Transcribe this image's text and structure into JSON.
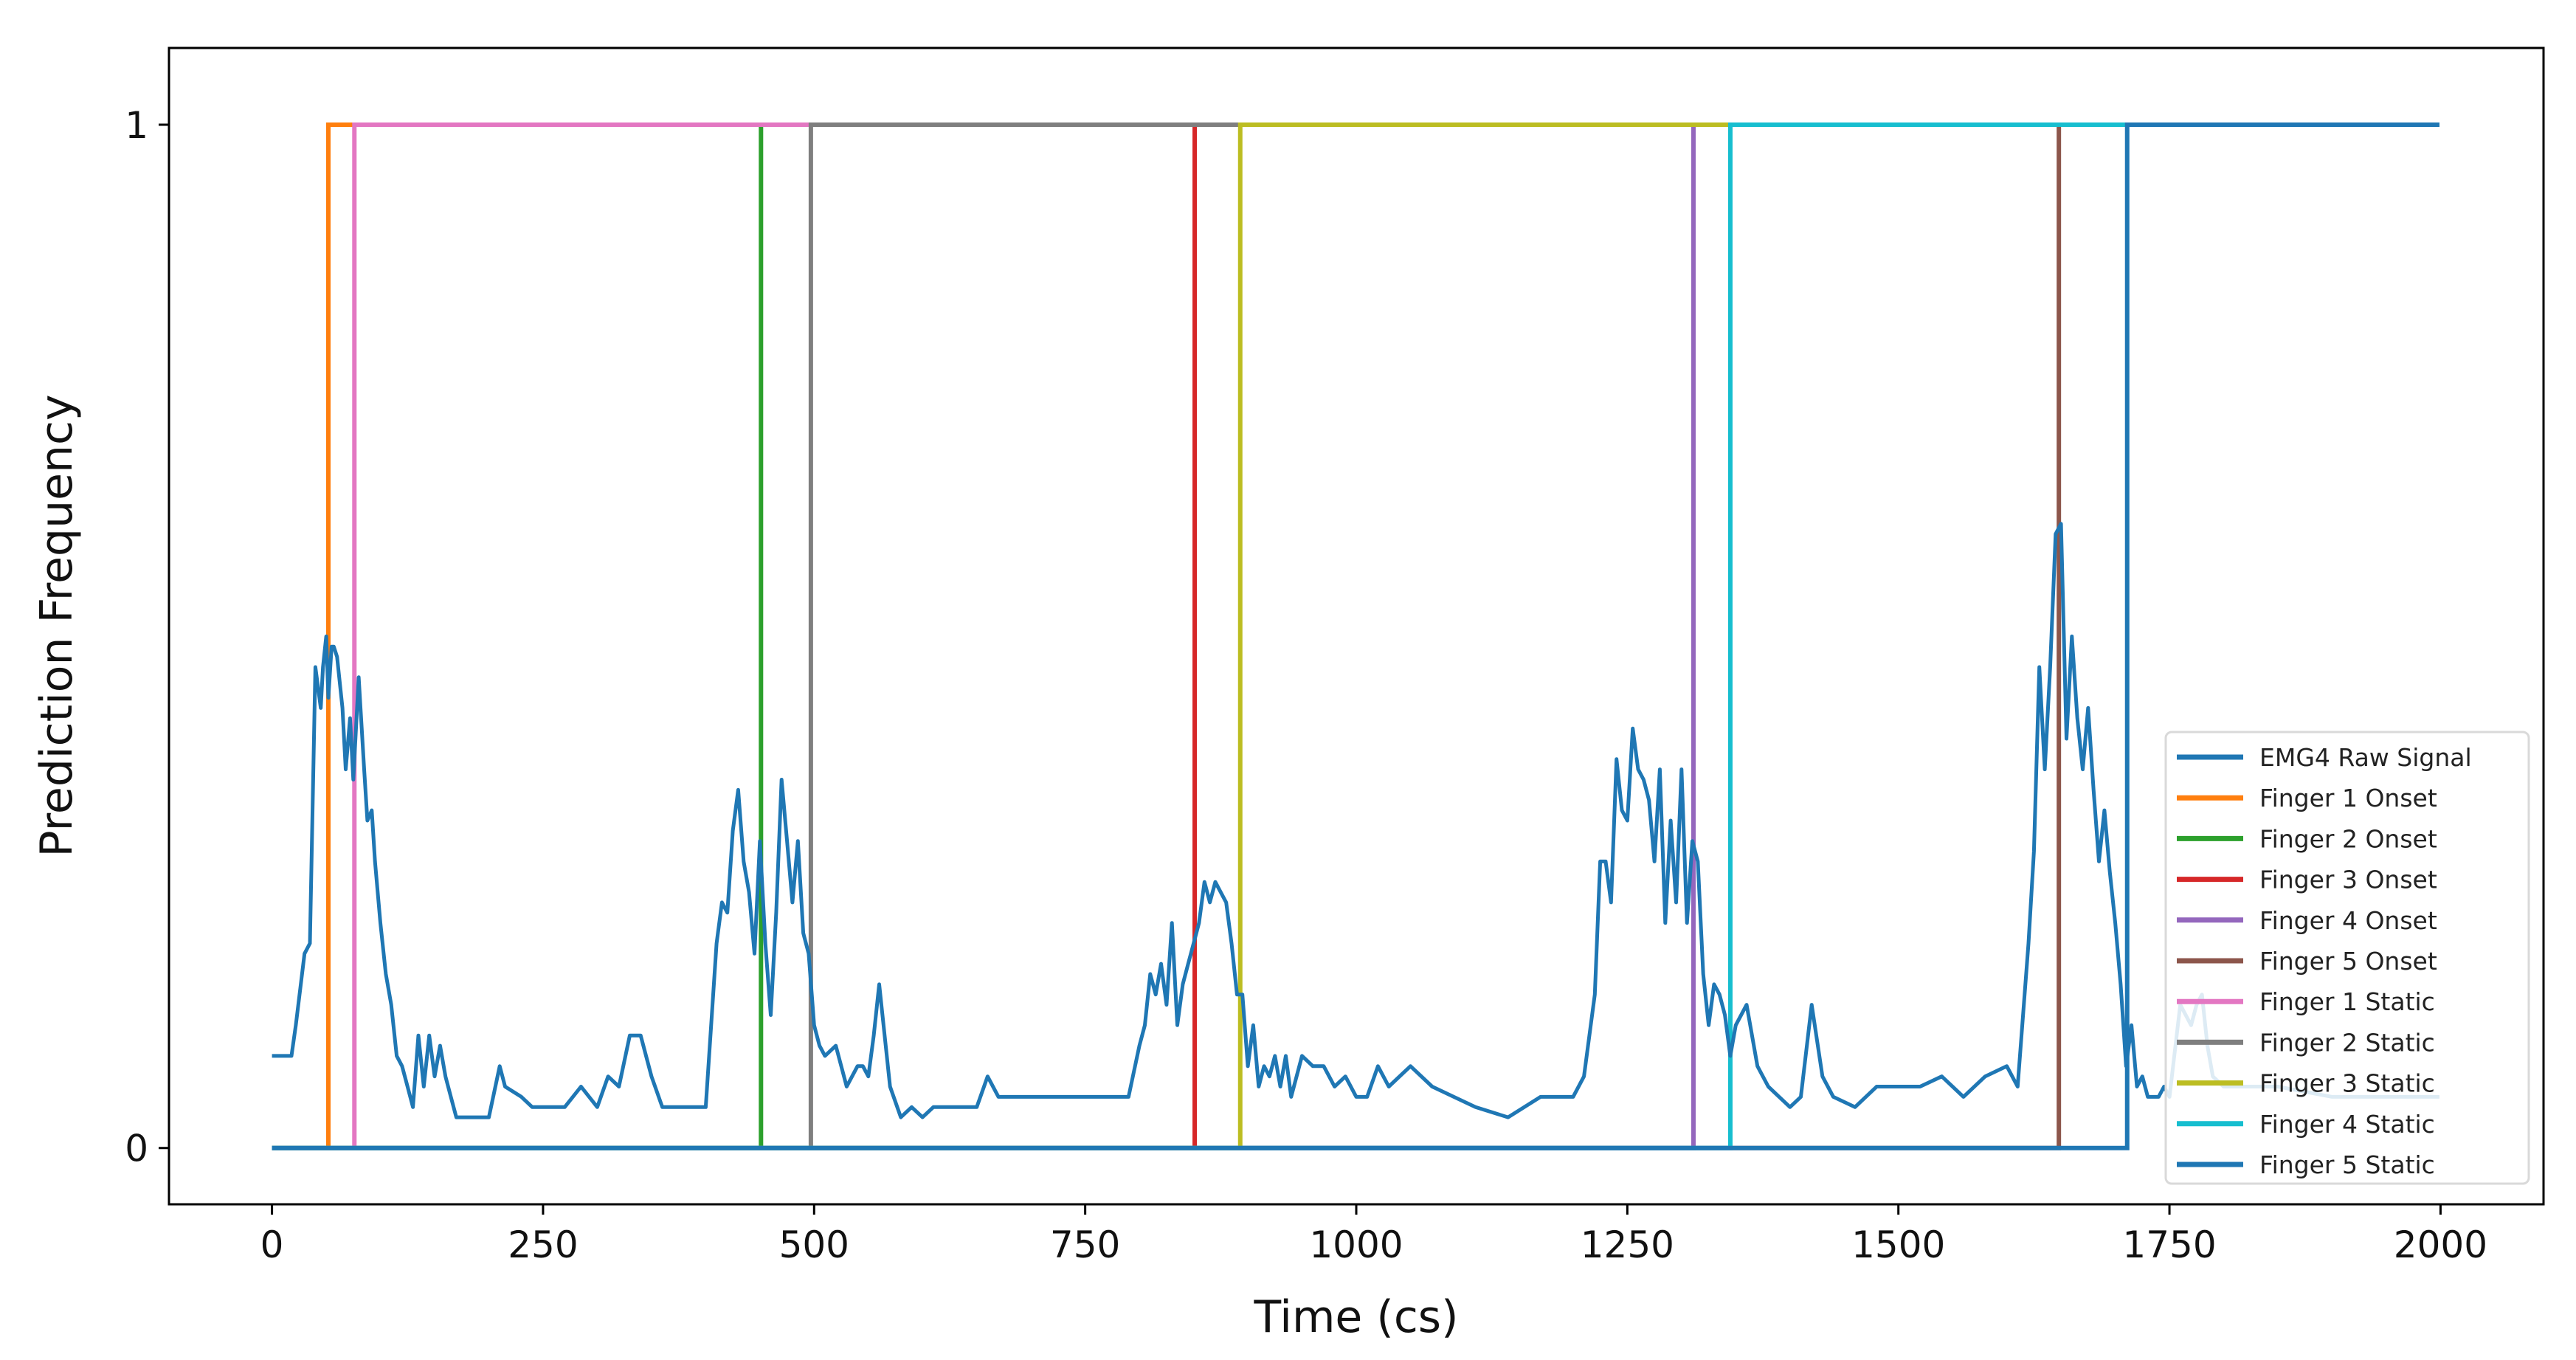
{
  "chart_data": {
    "type": "line",
    "title": "",
    "xlabel": "Time (cs)",
    "ylabel": "Prediction Frequency",
    "xlim": [
      -95,
      2095
    ],
    "ylim": [
      -0.055,
      1.075
    ],
    "xticks": [
      0,
      250,
      500,
      750,
      1000,
      1250,
      1500,
      1750,
      2000
    ],
    "xtick_labels": [
      "0",
      "250",
      "500",
      "750",
      "1000",
      "1250",
      "1500",
      "1750",
      "2000"
    ],
    "yticks": [
      0,
      1
    ],
    "ytick_labels": [
      "0",
      "1"
    ],
    "grid": false,
    "legend_position": "lower-right",
    "colors": {
      "EMG4 Raw Signal": "#1f77b4",
      "Finger 1 Onset": "#ff7f0e",
      "Finger 2 Onset": "#2ca02c",
      "Finger 3 Onset": "#d62728",
      "Finger 4 Onset": "#9467bd",
      "Finger 5 Onset": "#8c564b",
      "Finger 1 Static": "#e377c2",
      "Finger 2 Static": "#7f7f7f",
      "Finger 3 Static": "#bcbd22",
      "Finger 4 Static": "#17becf",
      "Finger 5 Static": "#1f77b4"
    },
    "raw_signal": {
      "name": "EMG4 Raw Signal",
      "x": [
        0,
        18,
        22,
        30,
        35,
        40,
        45,
        47,
        50,
        52,
        55,
        57,
        60,
        62,
        65,
        68,
        72,
        75,
        80,
        85,
        88,
        92,
        95,
        100,
        105,
        110,
        115,
        120,
        125,
        130,
        135,
        140,
        145,
        150,
        155,
        160,
        165,
        170,
        175,
        180,
        190,
        200,
        210,
        215,
        230,
        240,
        250,
        260,
        270,
        285,
        300,
        310,
        320,
        330,
        340,
        350,
        360,
        370,
        380,
        400,
        410,
        415,
        420,
        425,
        430,
        435,
        440,
        445,
        450,
        455,
        460,
        465,
        470,
        475,
        480,
        485,
        490,
        495,
        500,
        505,
        510,
        520,
        530,
        540,
        545,
        550,
        555,
        560,
        570,
        580,
        590,
        600,
        610,
        630,
        640,
        650,
        660,
        670,
        700,
        730,
        760,
        790,
        800,
        805,
        810,
        815,
        820,
        825,
        830,
        835,
        840,
        845,
        850,
        855,
        860,
        865,
        870,
        875,
        880,
        885,
        890,
        895,
        900,
        905,
        910,
        915,
        920,
        925,
        930,
        935,
        940,
        950,
        960,
        970,
        980,
        990,
        1000,
        1010,
        1020,
        1030,
        1050,
        1070,
        1090,
        1110,
        1140,
        1170,
        1200,
        1210,
        1220,
        1225,
        1230,
        1235,
        1240,
        1245,
        1250,
        1255,
        1260,
        1265,
        1270,
        1275,
        1280,
        1285,
        1290,
        1295,
        1300,
        1305,
        1310,
        1315,
        1320,
        1325,
        1330,
        1335,
        1340,
        1345,
        1350,
        1360,
        1370,
        1380,
        1390,
        1400,
        1410,
        1420,
        1430,
        1440,
        1460,
        1480,
        1500,
        1520,
        1540,
        1560,
        1580,
        1600,
        1610,
        1620,
        1625,
        1630,
        1635,
        1640,
        1645,
        1650,
        1655,
        1660,
        1665,
        1670,
        1675,
        1680,
        1685,
        1690,
        1695,
        1700,
        1705,
        1710,
        1715,
        1720,
        1725,
        1730,
        1735,
        1740,
        1745,
        1750,
        1760,
        1770,
        1775,
        1780,
        1785,
        1790,
        1800,
        1850,
        1900,
        1950,
        1999
      ],
      "y": [
        0.09,
        0.09,
        0.12,
        0.19,
        0.2,
        0.47,
        0.43,
        0.47,
        0.5,
        0.44,
        0.49,
        0.49,
        0.48,
        0.46,
        0.43,
        0.37,
        0.42,
        0.36,
        0.46,
        0.37,
        0.32,
        0.33,
        0.28,
        0.22,
        0.17,
        0.14,
        0.09,
        0.08,
        0.06,
        0.04,
        0.11,
        0.06,
        0.11,
        0.07,
        0.1,
        0.07,
        0.05,
        0.03,
        0.03,
        0.03,
        0.03,
        0.03,
        0.08,
        0.06,
        0.05,
        0.04,
        0.04,
        0.04,
        0.04,
        0.06,
        0.04,
        0.07,
        0.06,
        0.11,
        0.11,
        0.07,
        0.04,
        0.04,
        0.04,
        0.04,
        0.2,
        0.24,
        0.23,
        0.31,
        0.35,
        0.28,
        0.25,
        0.19,
        0.3,
        0.2,
        0.13,
        0.23,
        0.36,
        0.3,
        0.24,
        0.3,
        0.21,
        0.19,
        0.12,
        0.1,
        0.09,
        0.1,
        0.06,
        0.08,
        0.08,
        0.07,
        0.11,
        0.16,
        0.06,
        0.03,
        0.04,
        0.03,
        0.04,
        0.04,
        0.04,
        0.04,
        0.07,
        0.05,
        0.05,
        0.05,
        0.05,
        0.05,
        0.1,
        0.12,
        0.17,
        0.15,
        0.18,
        0.14,
        0.22,
        0.12,
        0.16,
        0.18,
        0.2,
        0.22,
        0.26,
        0.24,
        0.26,
        0.25,
        0.24,
        0.2,
        0.15,
        0.15,
        0.08,
        0.12,
        0.06,
        0.08,
        0.07,
        0.09,
        0.06,
        0.09,
        0.05,
        0.09,
        0.08,
        0.08,
        0.06,
        0.07,
        0.05,
        0.05,
        0.08,
        0.06,
        0.08,
        0.06,
        0.05,
        0.04,
        0.03,
        0.05,
        0.05,
        0.07,
        0.15,
        0.28,
        0.28,
        0.24,
        0.38,
        0.33,
        0.32,
        0.41,
        0.37,
        0.36,
        0.34,
        0.28,
        0.37,
        0.22,
        0.32,
        0.24,
        0.37,
        0.22,
        0.3,
        0.28,
        0.17,
        0.12,
        0.16,
        0.15,
        0.13,
        0.09,
        0.12,
        0.14,
        0.08,
        0.06,
        0.05,
        0.04,
        0.05,
        0.14,
        0.07,
        0.05,
        0.04,
        0.06,
        0.06,
        0.06,
        0.07,
        0.05,
        0.07,
        0.08,
        0.06,
        0.2,
        0.29,
        0.47,
        0.37,
        0.47,
        0.6,
        0.61,
        0.4,
        0.5,
        0.42,
        0.37,
        0.43,
        0.35,
        0.28,
        0.33,
        0.27,
        0.22,
        0.16,
        0.08,
        0.12,
        0.06,
        0.07,
        0.05,
        0.05,
        0.05,
        0.06,
        0.05,
        0.14,
        0.12,
        0.14,
        0.15,
        0.1,
        0.07,
        0.06,
        0.06,
        0.05,
        0.05,
        0.05
      ]
    },
    "step_series": [
      {
        "name": "Finger 1 Onset",
        "step_x": 52
      },
      {
        "name": "Finger 2 Onset",
        "step_x": 451
      },
      {
        "name": "Finger 3 Onset",
        "step_x": 851
      },
      {
        "name": "Finger 4 Onset",
        "step_x": 1311
      },
      {
        "name": "Finger 5 Onset",
        "step_x": 1648
      },
      {
        "name": "Finger 1 Static",
        "step_x": 76
      },
      {
        "name": "Finger 2 Static",
        "step_x": 497
      },
      {
        "name": "Finger 3 Static",
        "step_x": 893
      },
      {
        "name": "Finger 4 Static",
        "step_x": 1345
      },
      {
        "name": "Finger 5 Static",
        "step_x": 1711
      }
    ],
    "step_range": [
      0,
      1999
    ],
    "legend": [
      "EMG4 Raw Signal",
      "Finger 1 Onset",
      "Finger 2 Onset",
      "Finger 3 Onset",
      "Finger 4 Onset",
      "Finger 5 Onset",
      "Finger 1 Static",
      "Finger 2 Static",
      "Finger 3 Static",
      "Finger 4 Static",
      "Finger 5 Static"
    ]
  }
}
